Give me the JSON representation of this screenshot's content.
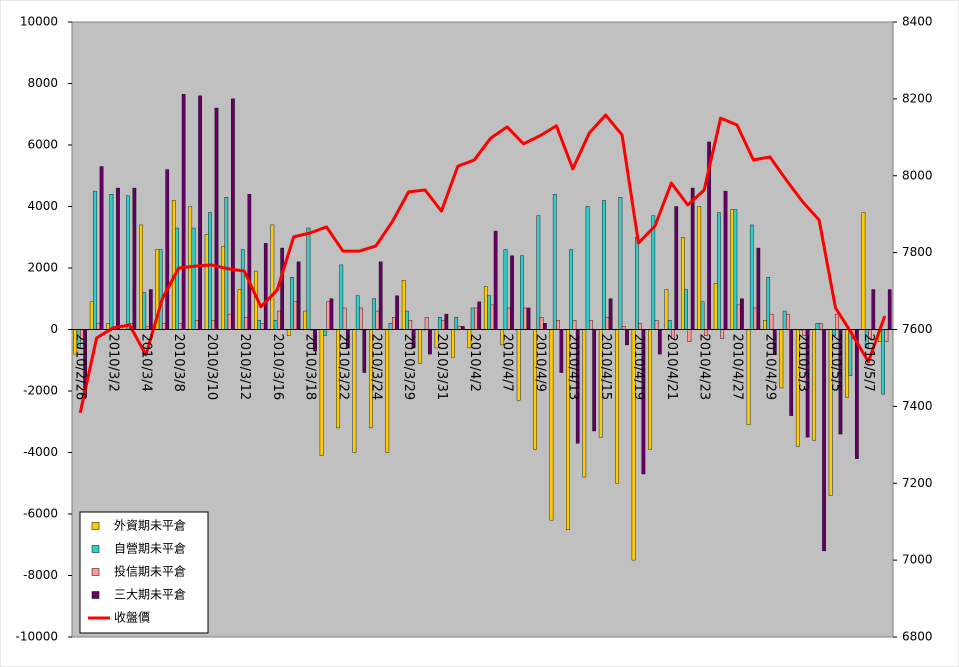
{
  "chart_data": {
    "type": "bar",
    "categories": [
      "2010/2/26",
      null,
      "2010/3/2",
      null,
      "2010/3/4",
      null,
      "2010/3/8",
      null,
      "2010/3/10",
      null,
      "2010/3/12",
      null,
      "2010/3/16",
      null,
      "2010/3/18",
      null,
      "2010/3/22",
      null,
      "2010/3/24",
      null,
      "2010/3/29",
      null,
      "2010/3/31",
      null,
      "2010/4/2",
      null,
      "2010/4/7",
      null,
      "2010/4/9",
      null,
      "2010/4/13",
      null,
      "2010/4/15",
      null,
      "2010/4/19",
      null,
      "2010/4/21",
      null,
      "2010/4/23",
      null,
      "2010/4/27",
      null,
      "2010/4/29",
      null,
      "2010/5/3",
      null,
      "2010/5/5",
      null,
      "2010/5/7",
      null
    ],
    "series": [
      {
        "name": "外資期未平倉",
        "color": "#ffcc00",
        "values": [
          -800,
          900,
          200,
          100,
          3400,
          2600,
          4200,
          4000,
          3100,
          2700,
          1300,
          1900,
          3400,
          -200,
          600,
          -4100,
          -3200,
          -4000,
          -3200,
          -4000,
          1600,
          -1100,
          -600,
          -900,
          -600,
          1400,
          -500,
          -2300,
          -3900,
          -6200,
          -6500,
          -4800,
          -3500,
          -5000,
          -7500,
          -3900,
          1300,
          3000,
          4000,
          1500,
          3900,
          -3100,
          300,
          -1900,
          -3800,
          -3600,
          -5400,
          -2200,
          3800,
          -400
        ]
      },
      {
        "name": "自營期未平倉",
        "color": "#33cccc",
        "values": [
          -600,
          4500,
          4400,
          4350,
          1200,
          2600,
          3300,
          3300,
          3800,
          4300,
          2600,
          300,
          300,
          1700,
          3300,
          -200,
          2100,
          1100,
          1000,
          200,
          600,
          0,
          400,
          400,
          700,
          1100,
          2600,
          2400,
          3700,
          4400,
          2600,
          4000,
          4200,
          4300,
          3000,
          3700,
          300,
          1300,
          900,
          3800,
          3900,
          3400,
          1700,
          600,
          0,
          200,
          -200,
          -1500,
          -600,
          -2100
        ]
      },
      {
        "name": "投信期未平倉",
        "color": "#ff9999",
        "values": [
          -300,
          200,
          100,
          200,
          100,
          200,
          200,
          300,
          300,
          500,
          400,
          200,
          600,
          900,
          0,
          900,
          700,
          700,
          600,
          400,
          300,
          400,
          300,
          100,
          700,
          800,
          700,
          700,
          400,
          300,
          300,
          300,
          400,
          100,
          200,
          300,
          -300,
          -400,
          -200,
          -300,
          800,
          700,
          500,
          500,
          -200,
          200,
          500,
          -300,
          -300,
          -400
        ]
      },
      {
        "name": "三大期未平倉",
        "color": "#660066",
        "values": [
          -2200,
          5300,
          4600,
          4600,
          1300,
          5200,
          7650,
          7600,
          7200,
          7500,
          4400,
          2800,
          2650,
          2200,
          -700,
          1000,
          -600,
          -1400,
          2200,
          1100,
          -600,
          -800,
          500,
          100,
          900,
          3200,
          2400,
          700,
          200,
          -1400,
          -3700,
          -3300,
          1000,
          -500,
          -4700,
          -800,
          4000,
          4600,
          6100,
          4500,
          1000,
          2650,
          -800,
          -2800,
          -3500,
          -7200,
          -3400,
          -4200,
          1300,
          1300
        ]
      },
      {
        "name": "收盤價",
        "color": "#ff0000",
        "type": "line",
        "axis": "y2",
        "values": [
          7383,
          7578,
          7604,
          7612,
          7534,
          7680,
          7760,
          7765,
          7768,
          7758,
          7752,
          7659,
          7703,
          7841,
          7851,
          7867,
          7804,
          7804,
          7817,
          7880,
          7958,
          7963,
          7908,
          8025,
          8041,
          8098,
          8127,
          8083,
          8104,
          8130,
          8018,
          8111,
          8158,
          8106,
          7825,
          7869,
          7981,
          7924,
          7963,
          8150,
          8132,
          8041,
          8049,
          7989,
          7932,
          7885,
          7656,
          7589,
          7516,
          7635
        ]
      }
    ],
    "ylim": [
      -10000,
      10000
    ],
    "yticks": [
      -10000,
      -8000,
      -6000,
      -4000,
      -2000,
      0,
      2000,
      4000,
      6000,
      8000,
      10000
    ],
    "y2lim": [
      6800,
      8400
    ],
    "y2ticks": [
      6800,
      7000,
      7200,
      7400,
      7600,
      7800,
      8000,
      8200,
      8400
    ],
    "plot_background": "#c0c0c0",
    "legend": "lower left"
  }
}
